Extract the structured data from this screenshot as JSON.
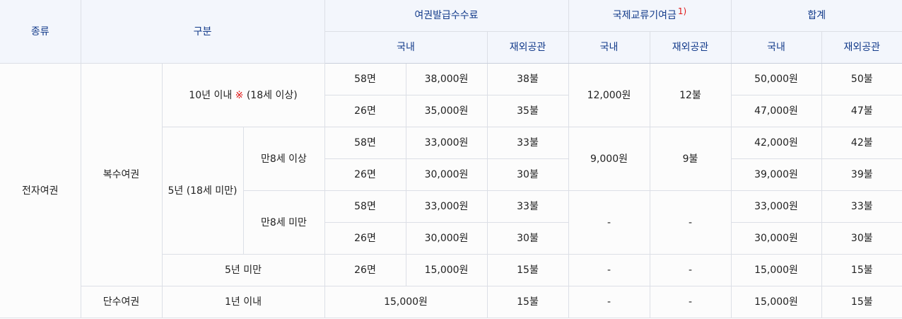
{
  "header": {
    "kind": "종류",
    "category": "구분",
    "issue_fee": "여권발급수수료",
    "intl_fund": "국제교류기여금",
    "intl_fund_footnote": "1)",
    "total": "합계",
    "domestic": "국내",
    "overseas": "재외공관"
  },
  "labels": {
    "e_passport": "전자여권",
    "multiple": "복수여권",
    "single": "단수여권",
    "ten_years_prefix": "10년 이내",
    "ten_years_mark": "※",
    "ten_years_suffix": "(18세 이상)",
    "five_years": "5년 (18세 미만)",
    "age8_over": "만8세 이상",
    "age8_under": "만8세 미만",
    "under5": "5년 미만",
    "one_year": "1년 이내",
    "pages58": "58면",
    "pages26": "26면",
    "dash": "-"
  },
  "rows": [
    {
      "fee_domestic": "38,000원",
      "fee_overseas": "38불",
      "total_domestic": "50,000원",
      "total_overseas": "50불"
    },
    {
      "fee_domestic": "35,000원",
      "fee_overseas": "35불",
      "total_domestic": "47,000원",
      "total_overseas": "47불"
    },
    {
      "fee_domestic": "33,000원",
      "fee_overseas": "33불",
      "total_domestic": "42,000원",
      "total_overseas": "42불"
    },
    {
      "fee_domestic": "30,000원",
      "fee_overseas": "30불",
      "total_domestic": "39,000원",
      "total_overseas": "39불"
    },
    {
      "fee_domestic": "33,000원",
      "fee_overseas": "33불",
      "total_domestic": "33,000원",
      "total_overseas": "33불"
    },
    {
      "fee_domestic": "30,000원",
      "fee_overseas": "30불",
      "total_domestic": "30,000원",
      "total_overseas": "30불"
    },
    {
      "fee_domestic": "15,000원",
      "fee_overseas": "15불",
      "total_domestic": "15,000원",
      "total_overseas": "15불"
    },
    {
      "fee_domestic": "15,000원",
      "fee_overseas": "15불",
      "total_domestic": "15,000원",
      "total_overseas": "15불"
    }
  ],
  "fund": {
    "ten_domestic": "12,000원",
    "ten_overseas": "12불",
    "five_over8_domestic": "9,000원",
    "five_over8_overseas": "9불"
  },
  "colors": {
    "header_text": "#123a8a",
    "header_bg": "#f3f6fc",
    "accent_red": "#e01818",
    "separator": "#c81e1e"
  }
}
